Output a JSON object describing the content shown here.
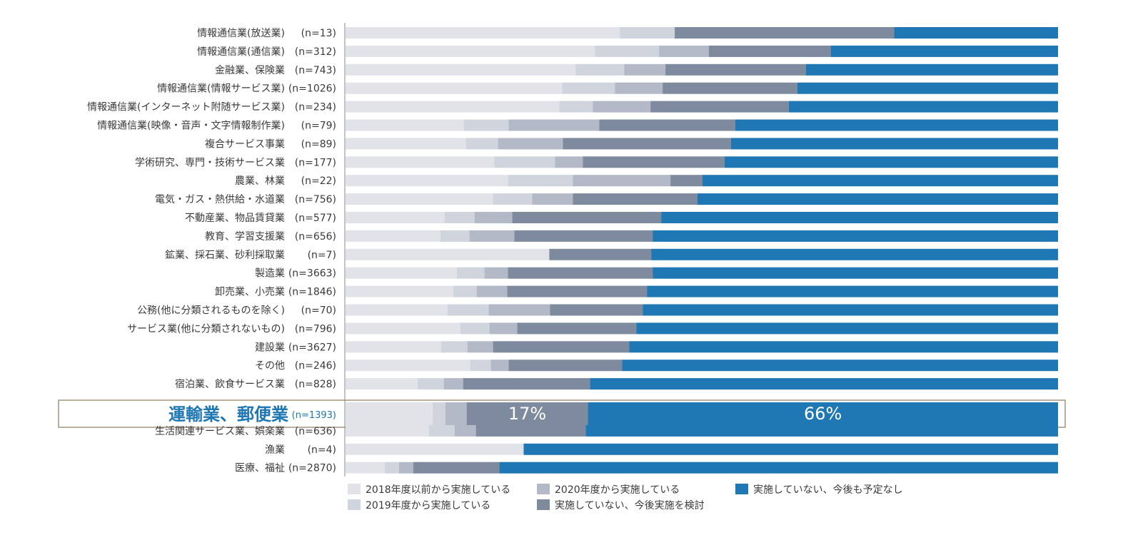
{
  "colors": [
    "#e1e3e8",
    "#d0d4dc",
    "#b4b9c7",
    "#7e8a9e",
    "#1f77b4"
  ],
  "chart_data": {
    "type": "bar",
    "orientation": "horizontal",
    "stacked": "percent",
    "xlim": [
      0,
      100
    ],
    "categories": [
      {
        "label": "情報通信業(放送業)",
        "n": "(n=13)"
      },
      {
        "label": "情報通信業(通信業)",
        "n": "(n=312)"
      },
      {
        "label": "金融業、保険業",
        "n": "(n=743)"
      },
      {
        "label": "情報通信業(情報サービス業)",
        "n": "(n=1026)"
      },
      {
        "label": "情報通信業(インターネット附随サービス業)",
        "n": "(n=234)"
      },
      {
        "label": "情報通信業(映像・音声・文字情報制作業)",
        "n": "(n=79)"
      },
      {
        "label": "複合サービス事業",
        "n": "(n=89)"
      },
      {
        "label": "学術研究、専門・技術サービス業",
        "n": "(n=177)"
      },
      {
        "label": "農業、林業",
        "n": "(n=22)"
      },
      {
        "label": "電気・ガス・熱供給・水道業",
        "n": "(n=756)"
      },
      {
        "label": "不動産業、物品賃貸業",
        "n": "(n=577)"
      },
      {
        "label": "教育、学習支援業",
        "n": "(n=656)"
      },
      {
        "label": "鉱業、採石業、砂利採取業",
        "n": "(n=7)"
      },
      {
        "label": "製造業",
        "n": "(n=3663)"
      },
      {
        "label": "卸売業、小売業",
        "n": "(n=1846)"
      },
      {
        "label": "公務(他に分類されるものを除く)",
        "n": "(n=70)"
      },
      {
        "label": "サービス業(他に分類されないもの)",
        "n": "(n=796)"
      },
      {
        "label": "建設業",
        "n": "(n=3627)"
      },
      {
        "label": "その他",
        "n": "(n=246)"
      },
      {
        "label": "宿泊業、飲食サービス業",
        "n": "(n=828)"
      },
      {
        "label": "運輸業、郵便業",
        "n": "(n=1393)",
        "highlight": true
      },
      {
        "label": "生活関連サービス業、娯楽業",
        "n": "(n=636)"
      },
      {
        "label": "漁業",
        "n": "(n=4)"
      },
      {
        "label": "医療、福祉",
        "n": "(n=2870)"
      }
    ],
    "series": [
      {
        "name": "2018年度以前から実施している",
        "values": [
          38.5,
          35,
          32.3,
          30.4,
          30,
          16.6,
          16.9,
          20.9,
          22.8,
          20.7,
          13.9,
          13.3,
          28.6,
          15.6,
          15.1,
          14.3,
          16.1,
          13.4,
          17.5,
          10.1,
          12.2,
          11.7,
          25,
          5.5
        ]
      },
      {
        "name": "2019年度から実施している",
        "values": [
          7.7,
          9,
          6.8,
          7.4,
          4.7,
          6.3,
          4.5,
          8.5,
          9.1,
          5.5,
          4.2,
          4.1,
          0,
          3.9,
          3.3,
          5.8,
          4.1,
          3.7,
          2.9,
          3.7,
          1.8,
          3.6,
          0,
          2
        ]
      },
      {
        "name": "2020年度から実施している",
        "values": [
          0,
          7,
          5.8,
          6.7,
          8.1,
          12.7,
          9.1,
          3.9,
          13.7,
          5.7,
          5.3,
          6.3,
          0,
          3.3,
          4.3,
          8.6,
          3.9,
          3.6,
          2.5,
          2.7,
          3,
          3,
          0,
          2
        ]
      },
      {
        "name": "実施していない、今後実施を検討",
        "values": [
          30.8,
          17.1,
          19.7,
          18.9,
          19.4,
          19.1,
          23.6,
          19.9,
          4.5,
          17.5,
          20.9,
          19.4,
          14.3,
          20.3,
          19.6,
          13,
          16.7,
          19.1,
          15.9,
          17.8,
          17,
          15.4,
          0,
          12.1
        ]
      },
      {
        "name": "実施していない、今後も予定なし",
        "values": [
          23,
          31.9,
          35.4,
          36.6,
          37.8,
          45.3,
          45.9,
          46.8,
          49.9,
          50.6,
          55.7,
          56.9,
          57.1,
          56.9,
          57.7,
          58.3,
          59.2,
          60.2,
          61.2,
          65.7,
          66,
          66.3,
          75,
          78.4
        ]
      }
    ],
    "annotations": [
      {
        "category": "運輸業、郵便業",
        "series": "実施していない、今後実施を検討",
        "text": "17%"
      },
      {
        "category": "運輸業、郵便業",
        "series": "実施していない、今後も予定なし",
        "text": "66%"
      }
    ],
    "legend": "bottom"
  }
}
